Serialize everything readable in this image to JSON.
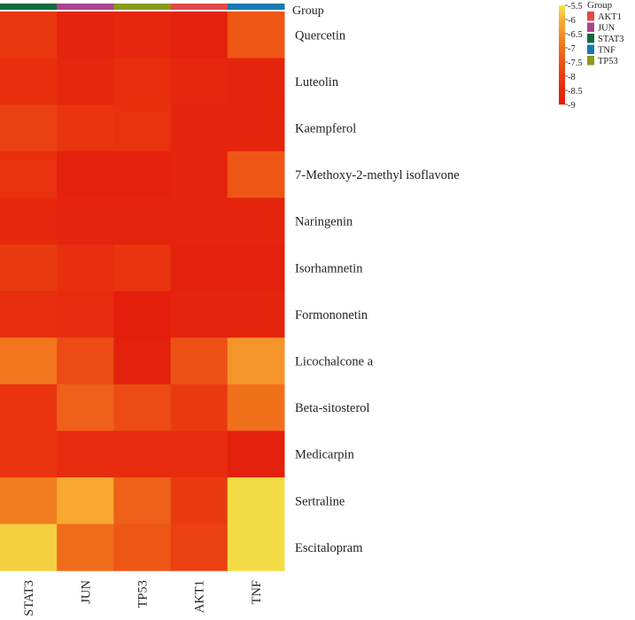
{
  "chart_data": {
    "type": "heatmap",
    "columns": [
      "STAT3",
      "JUN",
      "TP53",
      "AKT1",
      "TNF"
    ],
    "rows": [
      "Quercetin",
      "Luteolin",
      "Kaempferol",
      "7-Methoxy-2-methyl isoflavone",
      "Naringenin",
      "Isorhamnetin",
      "Formononetin",
      "Licochalcone a",
      "Beta-sitosterol",
      "Medicarpin",
      "Sertraline",
      "Escitalopram"
    ],
    "values": [
      [
        -8.1,
        -8.7,
        -8.6,
        -8.8,
        -7.5
      ],
      [
        -8.4,
        -8.6,
        -8.4,
        -8.6,
        -8.7
      ],
      [
        -7.9,
        -8.2,
        -8.3,
        -8.7,
        -8.7
      ],
      [
        -8.3,
        -8.8,
        -8.8,
        -8.7,
        -7.5
      ],
      [
        -8.6,
        -8.7,
        -8.7,
        -8.7,
        -8.7
      ],
      [
        -8.0,
        -8.4,
        -8.2,
        -8.8,
        -8.8
      ],
      [
        -8.4,
        -8.5,
        -8.9,
        -8.7,
        -8.7
      ],
      [
        -6.9,
        -7.7,
        -8.8,
        -7.6,
        -6.4
      ],
      [
        -8.2,
        -7.3,
        -7.7,
        -8.0,
        -7.0
      ],
      [
        -8.2,
        -8.5,
        -8.5,
        -8.5,
        -8.8
      ],
      [
        -6.8,
        -6.1,
        -7.3,
        -8.0,
        -5.6
      ],
      [
        -5.7,
        -7.1,
        -7.5,
        -7.9,
        -5.6
      ]
    ],
    "color_scale": {
      "min": -9,
      "max": -5.5,
      "stops": [
        {
          "value": -9,
          "color": "#e31a0c"
        },
        {
          "value": -8,
          "color": "#ea3b10"
        },
        {
          "value": -7,
          "color": "#f1701b"
        },
        {
          "value": -6,
          "color": "#f7ae32"
        },
        {
          "value": -5.5,
          "color": "#f2e64a"
        }
      ],
      "ticks": [
        "-5.5",
        "-6",
        "-6.5",
        "-7",
        "-7.5",
        "-8",
        "-8.5",
        "-9"
      ]
    },
    "annotation": {
      "label": "Group",
      "legend_title": "Group",
      "groups": [
        {
          "name": "STAT3",
          "color": "#106a3d"
        },
        {
          "name": "JUN",
          "color": "#a8468f"
        },
        {
          "name": "TP53",
          "color": "#8a9a1c"
        },
        {
          "name": "AKT1",
          "color": "#e04a48"
        },
        {
          "name": "TNF",
          "color": "#1a78b0"
        }
      ],
      "legend_order": [
        "AKT1",
        "JUN",
        "STAT3",
        "TNF",
        "TP53"
      ]
    }
  }
}
